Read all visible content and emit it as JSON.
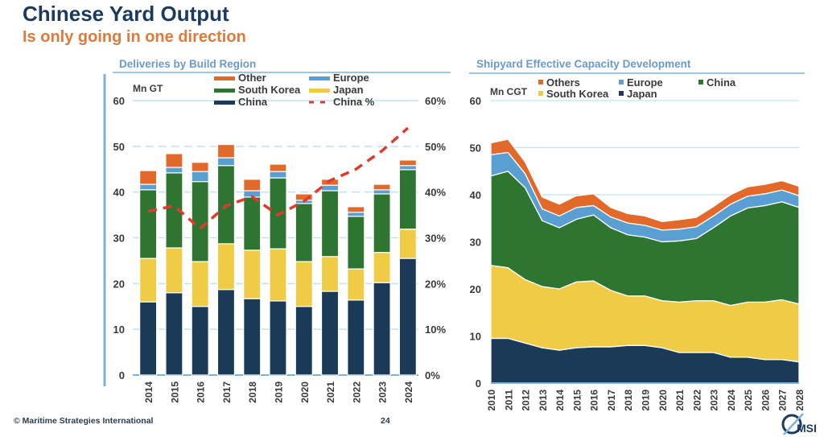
{
  "header": {
    "title": "Chinese Yard Output",
    "subtitle": "Is only going in one direction"
  },
  "footer": {
    "copyright": "© Maritime Strategies International",
    "page_number": "24",
    "logo_text": "MSI"
  },
  "colors": {
    "china": "#1b3a57",
    "japan": "#f0cb45",
    "south_korea": "#2e7531",
    "europe": "#5a9fd4",
    "other": "#e2692a",
    "china_pct": "#e03a30",
    "grid": "#bfe3ef",
    "axis": "#7fb2d8",
    "title_navy": "#1b3a5c",
    "title_orange": "#e07a3a"
  },
  "chart_data": [
    {
      "type": "bar",
      "stacked": true,
      "title": "Deliveries by Build Region",
      "ylabel": "Mn GT",
      "y2label": "",
      "ylim": [
        0,
        60
      ],
      "yticks": [
        "0",
        "10",
        "20",
        "30",
        "40",
        "50",
        "60"
      ],
      "y2lim": [
        0,
        60
      ],
      "y2ticks": [
        "0%",
        "10%",
        "20%",
        "30%",
        "40%",
        "50%",
        "60%"
      ],
      "grid": true,
      "legend": "top",
      "legend_entries": [
        {
          "label": "Other",
          "key": "other",
          "style": "bar"
        },
        {
          "label": "Europe",
          "key": "europe",
          "style": "bar"
        },
        {
          "label": "South Korea",
          "key": "south_korea",
          "style": "bar"
        },
        {
          "label": "Japan",
          "key": "japan",
          "style": "bar"
        },
        {
          "label": "China",
          "key": "china",
          "style": "bar"
        },
        {
          "label": "China %",
          "key": "china_pct",
          "style": "dashed-line"
        }
      ],
      "categories": [
        "2014",
        "2015",
        "2016",
        "2017",
        "2018",
        "2019",
        "2020",
        "2021",
        "2022",
        "2023",
        "2024"
      ],
      "series": [
        {
          "name": "China",
          "key": "china",
          "values": [
            16.0,
            18.0,
            15.0,
            18.7,
            16.7,
            16.2,
            15.0,
            18.3,
            16.4,
            20.2,
            25.5
          ]
        },
        {
          "name": "Japan",
          "key": "japan",
          "values": [
            9.5,
            9.8,
            9.8,
            10.0,
            10.6,
            11.4,
            9.8,
            7.6,
            6.8,
            6.6,
            6.4
          ]
        },
        {
          "name": "South Korea",
          "key": "south_korea",
          "values": [
            15.0,
            16.4,
            17.5,
            17.1,
            11.6,
            15.5,
            12.7,
            14.4,
            11.5,
            12.8,
            13.0
          ]
        },
        {
          "name": "Europe",
          "key": "europe",
          "values": [
            1.2,
            1.2,
            2.2,
            1.7,
            1.4,
            1.4,
            0.7,
            1.2,
            0.9,
            0.9,
            0.9
          ]
        },
        {
          "name": "Other",
          "key": "other",
          "values": [
            3.0,
            3.0,
            2.0,
            2.9,
            2.5,
            1.6,
            1.4,
            1.3,
            1.2,
            1.2,
            1.2
          ]
        }
      ],
      "line_series": {
        "name": "China %",
        "key": "china_pct",
        "axis": "right",
        "values": [
          35.8,
          37.0,
          32.0,
          37.0,
          39.0,
          35.0,
          38.0,
          42.5,
          45.0,
          49.0,
          54.0
        ]
      }
    },
    {
      "type": "area",
      "stacked": true,
      "title": "Shipyard Effective Capacity Development",
      "ylabel": "Mn CGT",
      "ylim": [
        0,
        60
      ],
      "yticks": [
        "0",
        "10",
        "20",
        "30",
        "40",
        "50",
        "60"
      ],
      "grid": true,
      "legend": "top",
      "legend_entries": [
        {
          "label": "Others",
          "key": "other"
        },
        {
          "label": "Europe",
          "key": "europe"
        },
        {
          "label": "China",
          "key": "south_korea"
        },
        {
          "label": "South Korea",
          "key": "japan"
        },
        {
          "label": "Japan",
          "key": "china"
        }
      ],
      "x": [
        "2010",
        "2011",
        "2012",
        "2013",
        "2014",
        "2015",
        "2016",
        "2017",
        "2018",
        "2019",
        "2020",
        "2021",
        "2022",
        "2023",
        "2024",
        "2025",
        "2026",
        "2027",
        "2028"
      ],
      "series": [
        {
          "name": "Japan",
          "color_key": "china",
          "values": [
            9.5,
            9.5,
            8.5,
            7.5,
            7.0,
            7.5,
            7.7,
            7.7,
            8.0,
            8.0,
            7.5,
            6.5,
            6.5,
            6.5,
            5.5,
            5.5,
            5.0,
            5.0,
            4.5
          ]
        },
        {
          "name": "South Korea",
          "color_key": "japan",
          "values": [
            15.5,
            15.0,
            13.5,
            13.0,
            13.0,
            14.0,
            14.0,
            12.0,
            10.5,
            10.5,
            10.0,
            10.7,
            11.0,
            11.0,
            11.0,
            11.7,
            12.2,
            12.7,
            12.3
          ]
        },
        {
          "name": "China",
          "color_key": "south_korea",
          "values": [
            19.0,
            20.5,
            19.5,
            14.0,
            13.0,
            13.3,
            14.0,
            13.3,
            13.0,
            12.5,
            12.5,
            13.0,
            13.2,
            15.5,
            19.0,
            20.0,
            20.5,
            20.8,
            20.5
          ]
        },
        {
          "name": "Europe",
          "color_key": "europe",
          "values": [
            4.5,
            4.0,
            3.0,
            2.5,
            2.5,
            2.5,
            2.0,
            2.3,
            2.5,
            2.5,
            2.5,
            2.5,
            2.5,
            2.5,
            2.5,
            2.5,
            2.5,
            2.5,
            2.5
          ]
        },
        {
          "name": "Others",
          "color_key": "other",
          "values": [
            2.5,
            2.8,
            2.5,
            2.5,
            2.5,
            2.5,
            2.5,
            2.0,
            2.0,
            2.0,
            1.8,
            2.0,
            2.0,
            2.0,
            2.0,
            2.0,
            2.0,
            2.0,
            2.0
          ]
        }
      ]
    }
  ]
}
